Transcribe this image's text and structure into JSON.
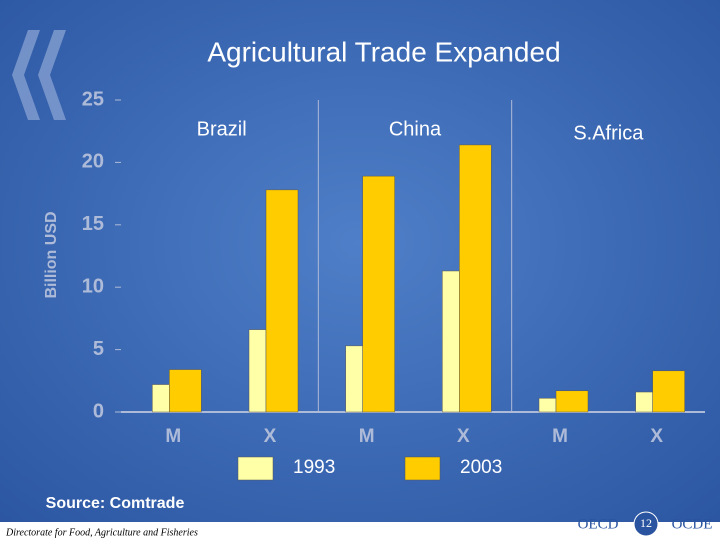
{
  "chart_data": {
    "type": "bar",
    "title": "Agricultural Trade Expanded",
    "y_label": "Billion USD",
    "categories": [
      "M",
      "X",
      "M",
      "X",
      "M",
      "X"
    ],
    "groups": [
      "Brazil",
      "China",
      "S.Africa"
    ],
    "series": [
      {
        "name": "1993",
        "color": "#ffffa8",
        "values": [
          2.2,
          6.6,
          5.3,
          11.3,
          1.1,
          1.6
        ]
      },
      {
        "name": "2003",
        "color": "#ffcc00",
        "values": [
          3.4,
          17.8,
          18.9,
          21.4,
          1.7,
          3.3
        ]
      }
    ],
    "ylim": [
      0,
      25
    ],
    "yticks": [
      0,
      5,
      10,
      15,
      20,
      25
    ]
  },
  "footer": {
    "source": "Source: Comtrade",
    "directorate": "Directorate for Food, Agriculture and Fisheries",
    "page": "12",
    "logo_left": "OECD",
    "logo_right": "OCDE"
  }
}
